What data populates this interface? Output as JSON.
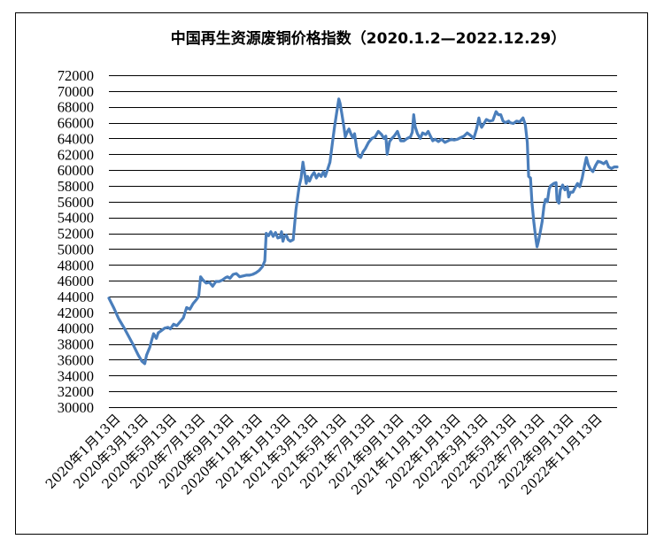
{
  "chart_data": {
    "type": "line",
    "title": "中国再生资源废铜价格指数（2020.1.2—2022.12.29）",
    "xlabel": "",
    "ylabel": "",
    "ylim": [
      30000,
      72000
    ],
    "yticks": [
      30000,
      32000,
      34000,
      36000,
      38000,
      40000,
      42000,
      44000,
      46000,
      48000,
      50000,
      52000,
      54000,
      56000,
      58000,
      60000,
      62000,
      64000,
      66000,
      68000,
      70000,
      72000
    ],
    "xlim": [
      "2020-01-02",
      "2022-12-29"
    ],
    "xticks": [
      {
        "date": "2020-01-13",
        "label": "2020年1月13日"
      },
      {
        "date": "2020-03-13",
        "label": "2020年3月13日"
      },
      {
        "date": "2020-05-13",
        "label": "2020年5月13日"
      },
      {
        "date": "2020-07-13",
        "label": "2020年7月13日"
      },
      {
        "date": "2020-09-13",
        "label": "2020年9月13日"
      },
      {
        "date": "2020-11-13",
        "label": "2020年11月13日"
      },
      {
        "date": "2021-01-13",
        "label": "2021年1月13日"
      },
      {
        "date": "2021-03-13",
        "label": "2021年3月13日"
      },
      {
        "date": "2021-05-13",
        "label": "2021年5月13日"
      },
      {
        "date": "2021-07-13",
        "label": "2021年7月13日"
      },
      {
        "date": "2021-09-13",
        "label": "2021年9月13日"
      },
      {
        "date": "2021-11-13",
        "label": "2021年11月13日"
      },
      {
        "date": "2022-01-13",
        "label": "2022年1月13日"
      },
      {
        "date": "2022-03-13",
        "label": "2022年3月13日"
      },
      {
        "date": "2022-05-13",
        "label": "2022年5月13日"
      },
      {
        "date": "2022-07-13",
        "label": "2022年7月13日"
      },
      {
        "date": "2022-09-13",
        "label": "2022年9月13日"
      },
      {
        "date": "2022-11-13",
        "label": "2022年11月13日"
      }
    ],
    "grid": "horizontal",
    "legend": "none",
    "line_color": "#4a7ebb",
    "series": [
      {
        "name": "",
        "points": [
          [
            "2020-01-02",
            43800
          ],
          [
            "2020-01-13",
            42500
          ],
          [
            "2020-01-23",
            41200
          ],
          [
            "2020-02-03",
            40100
          ],
          [
            "2020-02-14",
            38900
          ],
          [
            "2020-02-24",
            37800
          ],
          [
            "2020-03-05",
            36600
          ],
          [
            "2020-03-13",
            35800
          ],
          [
            "2020-03-19",
            35500
          ],
          [
            "2020-03-23",
            36600
          ],
          [
            "2020-03-30",
            37600
          ],
          [
            "2020-04-03",
            38500
          ],
          [
            "2020-04-07",
            39300
          ],
          [
            "2020-04-13",
            38700
          ],
          [
            "2020-04-17",
            39400
          ],
          [
            "2020-04-24",
            39700
          ],
          [
            "2020-05-01",
            40000
          ],
          [
            "2020-05-08",
            40100
          ],
          [
            "2020-05-13",
            39900
          ],
          [
            "2020-05-20",
            40500
          ],
          [
            "2020-05-27",
            40300
          ],
          [
            "2020-06-03",
            40800
          ],
          [
            "2020-06-10",
            41300
          ],
          [
            "2020-06-17",
            42600
          ],
          [
            "2020-06-24",
            42400
          ],
          [
            "2020-07-01",
            43100
          ],
          [
            "2020-07-08",
            43600
          ],
          [
            "2020-07-13",
            44000
          ],
          [
            "2020-07-17",
            46500
          ],
          [
            "2020-07-22",
            46100
          ],
          [
            "2020-07-29",
            45700
          ],
          [
            "2020-08-05",
            45800
          ],
          [
            "2020-08-12",
            45300
          ],
          [
            "2020-08-19",
            45900
          ],
          [
            "2020-08-26",
            45900
          ],
          [
            "2020-09-02",
            46100
          ],
          [
            "2020-09-09",
            46400
          ],
          [
            "2020-09-13",
            46500
          ],
          [
            "2020-09-18",
            46300
          ],
          [
            "2020-09-25",
            46800
          ],
          [
            "2020-10-02",
            46900
          ],
          [
            "2020-10-09",
            46500
          ],
          [
            "2020-10-16",
            46600
          ],
          [
            "2020-10-23",
            46700
          ],
          [
            "2020-10-30",
            46700
          ],
          [
            "2020-11-06",
            46800
          ],
          [
            "2020-11-13",
            47000
          ],
          [
            "2020-11-20",
            47300
          ],
          [
            "2020-11-27",
            47800
          ],
          [
            "2020-12-02",
            48500
          ],
          [
            "2020-12-05",
            52000
          ],
          [
            "2020-12-10",
            51700
          ],
          [
            "2020-12-15",
            52200
          ],
          [
            "2020-12-20",
            51600
          ],
          [
            "2020-12-25",
            52100
          ],
          [
            "2020-12-30",
            51400
          ],
          [
            "2021-01-04",
            51500
          ],
          [
            "2021-01-07",
            52200
          ],
          [
            "2021-01-10",
            51000
          ],
          [
            "2021-01-13",
            51600
          ],
          [
            "2021-01-17",
            51800
          ],
          [
            "2021-01-21",
            51200
          ],
          [
            "2021-01-26",
            51000
          ],
          [
            "2021-02-01",
            51200
          ],
          [
            "2021-02-07",
            55000
          ],
          [
            "2021-02-14",
            58000
          ],
          [
            "2021-02-18",
            59000
          ],
          [
            "2021-02-22",
            61000
          ],
          [
            "2021-02-25",
            59800
          ],
          [
            "2021-03-01",
            58300
          ],
          [
            "2021-03-04",
            59200
          ],
          [
            "2021-03-08",
            58600
          ],
          [
            "2021-03-13",
            59300
          ],
          [
            "2021-03-18",
            59700
          ],
          [
            "2021-03-23",
            59000
          ],
          [
            "2021-03-28",
            59500
          ],
          [
            "2021-04-02",
            59200
          ],
          [
            "2021-04-07",
            59800
          ],
          [
            "2021-04-11",
            59200
          ],
          [
            "2021-04-16",
            60100
          ],
          [
            "2021-04-21",
            61000
          ],
          [
            "2021-04-26",
            63300
          ],
          [
            "2021-05-01",
            65500
          ],
          [
            "2021-05-06",
            67500
          ],
          [
            "2021-05-10",
            69000
          ],
          [
            "2021-05-13",
            68400
          ],
          [
            "2021-05-17",
            67000
          ],
          [
            "2021-05-21",
            65500
          ],
          [
            "2021-05-24",
            64200
          ],
          [
            "2021-05-28",
            64800
          ],
          [
            "2021-06-01",
            65200
          ],
          [
            "2021-06-05",
            64600
          ],
          [
            "2021-06-09",
            64100
          ],
          [
            "2021-06-13",
            64600
          ],
          [
            "2021-06-17",
            63000
          ],
          [
            "2021-06-21",
            61800
          ],
          [
            "2021-06-26",
            61600
          ],
          [
            "2021-07-01",
            62300
          ],
          [
            "2021-07-06",
            62700
          ],
          [
            "2021-07-13",
            63500
          ],
          [
            "2021-07-20",
            64000
          ],
          [
            "2021-07-27",
            64200
          ],
          [
            "2021-08-03",
            64900
          ],
          [
            "2021-08-10",
            64500
          ],
          [
            "2021-08-15",
            64000
          ],
          [
            "2021-08-19",
            64300
          ],
          [
            "2021-08-22",
            62000
          ],
          [
            "2021-08-27",
            63600
          ],
          [
            "2021-09-01",
            64000
          ],
          [
            "2021-09-06",
            64300
          ],
          [
            "2021-09-13",
            64900
          ],
          [
            "2021-09-20",
            63700
          ],
          [
            "2021-09-27",
            63700
          ],
          [
            "2021-10-04",
            64000
          ],
          [
            "2021-10-11",
            64200
          ],
          [
            "2021-10-15",
            64800
          ],
          [
            "2021-10-18",
            67000
          ],
          [
            "2021-10-21",
            65500
          ],
          [
            "2021-10-26",
            64600
          ],
          [
            "2021-11-01",
            64000
          ],
          [
            "2021-11-06",
            64700
          ],
          [
            "2021-11-13",
            64500
          ],
          [
            "2021-11-18",
            64900
          ],
          [
            "2021-11-23",
            64300
          ],
          [
            "2021-11-28",
            63700
          ],
          [
            "2021-12-03",
            63900
          ],
          [
            "2021-12-10",
            63600
          ],
          [
            "2021-12-17",
            63900
          ],
          [
            "2021-12-24",
            63500
          ],
          [
            "2021-12-31",
            63700
          ],
          [
            "2022-01-07",
            63900
          ],
          [
            "2022-01-13",
            63800
          ],
          [
            "2022-01-20",
            63900
          ],
          [
            "2022-01-27",
            64100
          ],
          [
            "2022-02-03",
            64300
          ],
          [
            "2022-02-10",
            64700
          ],
          [
            "2022-02-17",
            64400
          ],
          [
            "2022-02-24",
            64000
          ],
          [
            "2022-03-02",
            65200
          ],
          [
            "2022-03-07",
            66600
          ],
          [
            "2022-03-10",
            65800
          ],
          [
            "2022-03-13",
            65400
          ],
          [
            "2022-03-18",
            65900
          ],
          [
            "2022-03-23",
            66400
          ],
          [
            "2022-03-30",
            66200
          ],
          [
            "2022-04-06",
            66300
          ],
          [
            "2022-04-13",
            67400
          ],
          [
            "2022-04-18",
            67000
          ],
          [
            "2022-04-23",
            67000
          ],
          [
            "2022-04-28",
            66200
          ],
          [
            "2022-05-03",
            66000
          ],
          [
            "2022-05-10",
            66200
          ],
          [
            "2022-05-13",
            66000
          ],
          [
            "2022-05-20",
            65900
          ],
          [
            "2022-05-27",
            66200
          ],
          [
            "2022-06-03",
            66100
          ],
          [
            "2022-06-10",
            66600
          ],
          [
            "2022-06-15",
            65700
          ],
          [
            "2022-06-19",
            63500
          ],
          [
            "2022-06-22",
            59200
          ],
          [
            "2022-06-26",
            59000
          ],
          [
            "2022-06-29",
            56000
          ],
          [
            "2022-07-03",
            53500
          ],
          [
            "2022-07-07",
            51500
          ],
          [
            "2022-07-10",
            50300
          ],
          [
            "2022-07-13",
            51000
          ],
          [
            "2022-07-17",
            52200
          ],
          [
            "2022-07-21",
            53500
          ],
          [
            "2022-07-25",
            55500
          ],
          [
            "2022-07-28",
            56300
          ],
          [
            "2022-08-01",
            56000
          ],
          [
            "2022-08-05",
            57600
          ],
          [
            "2022-08-08",
            58000
          ],
          [
            "2022-08-15",
            58300
          ],
          [
            "2022-08-20",
            58400
          ],
          [
            "2022-08-22",
            56200
          ],
          [
            "2022-08-26",
            55800
          ],
          [
            "2022-08-29",
            57500
          ],
          [
            "2022-09-03",
            58100
          ],
          [
            "2022-09-08",
            57500
          ],
          [
            "2022-09-13",
            57900
          ],
          [
            "2022-09-16",
            56600
          ],
          [
            "2022-09-20",
            57200
          ],
          [
            "2022-09-25",
            57200
          ],
          [
            "2022-09-30",
            57800
          ],
          [
            "2022-10-05",
            58300
          ],
          [
            "2022-10-10",
            57900
          ],
          [
            "2022-10-15",
            59000
          ],
          [
            "2022-10-20",
            60500
          ],
          [
            "2022-10-24",
            61600
          ],
          [
            "2022-10-28",
            60700
          ],
          [
            "2022-11-02",
            60100
          ],
          [
            "2022-11-07",
            59800
          ],
          [
            "2022-11-13",
            60600
          ],
          [
            "2022-11-18",
            61100
          ],
          [
            "2022-11-24",
            61000
          ],
          [
            "2022-11-30",
            60800
          ],
          [
            "2022-12-06",
            61100
          ],
          [
            "2022-12-11",
            60400
          ],
          [
            "2022-12-17",
            60200
          ],
          [
            "2022-12-23",
            60400
          ],
          [
            "2022-12-29",
            60400
          ]
        ]
      }
    ]
  }
}
